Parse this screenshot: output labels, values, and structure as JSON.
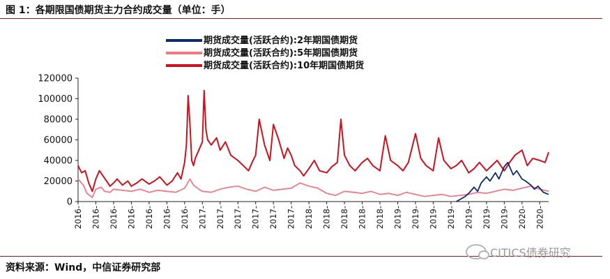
{
  "page": {
    "title": "图 1：各期限国债期货主力合约成交量（单位：手）",
    "source": "资料来源：Wind，中信证券研究部",
    "watermark": "CITICS债券研究"
  },
  "chart_data": {
    "type": "line",
    "title": "图 1：各期限国债期货主力合约成交量（单位：手）",
    "xlabel": "",
    "ylabel": "",
    "ylim": [
      0,
      120000
    ],
    "yticks": [
      "0",
      "20000",
      "40000",
      "60000",
      "80000",
      "100000",
      "120000"
    ],
    "xticks": [
      "2016-",
      "2016-",
      "2016-",
      "2016-",
      "2016-",
      "2016-",
      "2016-",
      "2017-",
      "2017-",
      "2017-",
      "2017-",
      "2017-",
      "2017-",
      "2018-",
      "2018-",
      "2018-",
      "2018-",
      "2018-",
      "2019-",
      "2019-",
      "2019-",
      "2019-",
      "2019-",
      "2019-",
      "2019-",
      "2020-",
      "2020-"
    ],
    "legend_position": "top-center",
    "grid": false,
    "series": [
      {
        "name": "期货成交量(活跃合约):2年期国债期货",
        "color": "#0d2a6b",
        "x": [
          21.3,
          21.5,
          21.8,
          22.0,
          22.3,
          22.5,
          22.7,
          23.0,
          23.2,
          23.5,
          23.7,
          24.0,
          24.2,
          24.5,
          24.7,
          25.0,
          25.2,
          25.5,
          25.7,
          25.9,
          26.2,
          26.5
        ],
        "y": [
          0,
          2000,
          5000,
          8000,
          14000,
          10000,
          18000,
          24000,
          20000,
          28000,
          22000,
          34000,
          38000,
          26000,
          30000,
          22000,
          20000,
          16000,
          12000,
          15000,
          9000,
          7000
        ]
      },
      {
        "name": "期货成交量(活跃合约):5年期国债期货",
        "color": "#f07a86",
        "x": [
          0,
          0.3,
          0.5,
          0.8,
          1.0,
          1.3,
          1.5,
          1.8,
          2.0,
          2.5,
          3.0,
          3.5,
          4.0,
          4.5,
          5.0,
          5.5,
          6.0,
          6.3,
          6.5,
          6.8,
          7.0,
          7.5,
          8.0,
          8.5,
          9.0,
          9.5,
          10.0,
          10.5,
          11.0,
          11.5,
          12.0,
          12.5,
          13.0,
          13.5,
          14.0,
          14.5,
          15.0,
          15.5,
          16.0,
          16.5,
          17.0,
          17.5,
          18.0,
          18.5,
          19.0,
          19.5,
          20.0,
          20.5,
          21.0,
          21.5,
          22.0,
          22.5,
          23.0,
          23.5,
          24.0,
          24.5,
          25.0,
          25.5,
          26.0,
          26.5
        ],
        "y": [
          22000,
          16000,
          8000,
          4000,
          12000,
          14000,
          10000,
          9000,
          12000,
          11000,
          10000,
          12000,
          9000,
          11000,
          10000,
          9000,
          13000,
          22000,
          16000,
          12000,
          10000,
          9000,
          12000,
          14000,
          15000,
          12000,
          10000,
          14000,
          11000,
          12000,
          13000,
          18000,
          15000,
          13000,
          8000,
          6000,
          10000,
          9000,
          8000,
          10000,
          7000,
          8000,
          6000,
          9000,
          7000,
          5000,
          6000,
          7000,
          5000,
          6000,
          7000,
          9000,
          8000,
          10000,
          12000,
          11000,
          13000,
          15000,
          12000,
          10000
        ]
      },
      {
        "name": "期货成交量(活跃合约):10年期国债期货",
        "color": "#d0101c",
        "x": [
          0,
          0.2,
          0.4,
          0.6,
          0.8,
          1.0,
          1.2,
          1.4,
          1.6,
          1.8,
          2.0,
          2.2,
          2.5,
          2.8,
          3.0,
          3.3,
          3.6,
          4.0,
          4.3,
          4.6,
          5.0,
          5.3,
          5.6,
          5.8,
          6.0,
          6.1,
          6.2,
          6.3,
          6.4,
          6.5,
          6.6,
          6.8,
          7.0,
          7.1,
          7.2,
          7.3,
          7.5,
          7.8,
          8.0,
          8.3,
          8.6,
          9.0,
          9.3,
          9.6,
          9.8,
          10.0,
          10.2,
          10.5,
          10.8,
          11.0,
          11.3,
          11.6,
          11.8,
          12.0,
          12.2,
          12.5,
          12.7,
          13.0,
          13.3,
          13.6,
          14.0,
          14.3,
          14.6,
          14.8,
          15.0,
          15.3,
          15.6,
          16.0,
          16.3,
          16.6,
          17.0,
          17.3,
          17.6,
          18.0,
          18.3,
          18.6,
          19.0,
          19.3,
          19.6,
          20.0,
          20.3,
          20.6,
          21.0,
          21.3,
          21.6,
          22.0,
          22.3,
          22.6,
          23.0,
          23.3,
          23.6,
          24.0,
          24.3,
          24.6,
          25.0,
          25.3,
          25.6,
          26.0,
          26.3,
          26.5
        ],
        "y": [
          35000,
          28000,
          30000,
          18000,
          10000,
          22000,
          30000,
          25000,
          20000,
          15000,
          18000,
          22000,
          16000,
          20000,
          15000,
          18000,
          22000,
          17000,
          20000,
          24000,
          16000,
          20000,
          28000,
          22000,
          38000,
          55000,
          103000,
          75000,
          40000,
          35000,
          42000,
          50000,
          58000,
          108000,
          70000,
          60000,
          55000,
          62000,
          50000,
          58000,
          45000,
          40000,
          35000,
          30000,
          38000,
          45000,
          80000,
          55000,
          40000,
          75000,
          60000,
          42000,
          52000,
          45000,
          35000,
          30000,
          25000,
          32000,
          40000,
          30000,
          28000,
          34000,
          38000,
          80000,
          45000,
          35000,
          30000,
          38000,
          42000,
          35000,
          30000,
          64000,
          40000,
          35000,
          30000,
          38000,
          66000,
          42000,
          35000,
          30000,
          62000,
          40000,
          32000,
          35000,
          40000,
          28000,
          32000,
          38000,
          30000,
          35000,
          40000,
          30000,
          38000,
          45000,
          50000,
          35000,
          42000,
          40000,
          38000,
          48000
        ]
      }
    ]
  }
}
